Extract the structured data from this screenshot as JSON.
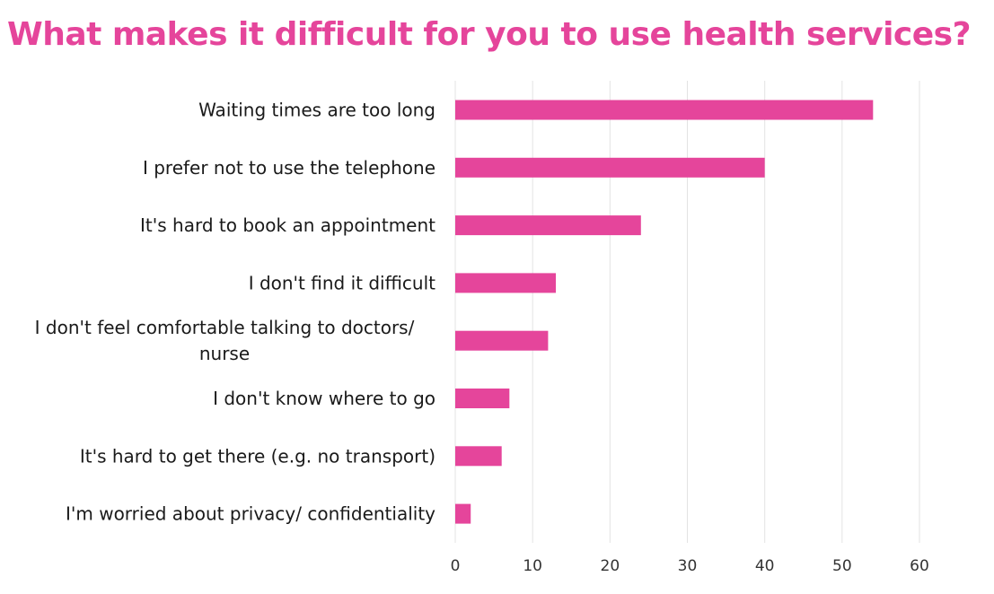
{
  "colors": {
    "accent": "#e5459b",
    "bar": "#e5459b"
  },
  "chart_data": {
    "type": "bar",
    "orientation": "horizontal",
    "title": "What makes it difficult for you to use health services?",
    "categories": [
      "Waiting times are too long",
      "I prefer not to use the telephone",
      "It's hard to book an appointment",
      "I don't find it difficult",
      "I don't feel comfortable talking to doctors/ nurse",
      "I don't know where to go",
      "It's hard to get there (e.g. no transport)",
      "I'm worried about privacy/ confidentiality"
    ],
    "category_lines": [
      [
        "Waiting times are too long"
      ],
      [
        "I prefer not to use the telephone"
      ],
      [
        "It's hard to book an appointment"
      ],
      [
        "I don't find it difficult"
      ],
      [
        "I don't feel comfortable talking to doctors/",
        "nurse"
      ],
      [
        "I don't know where to go"
      ],
      [
        "It's hard to get there (e.g. no transport)"
      ],
      [
        "I'm worried about privacy/ confidentiality"
      ]
    ],
    "values": [
      54,
      40,
      24,
      13,
      12,
      7,
      6,
      2
    ],
    "xlim": [
      0,
      60
    ],
    "xticks": [
      0,
      10,
      20,
      30,
      40,
      50,
      60
    ],
    "xlabel": "",
    "ylabel": "",
    "grid": "vertical",
    "legend": "none"
  }
}
